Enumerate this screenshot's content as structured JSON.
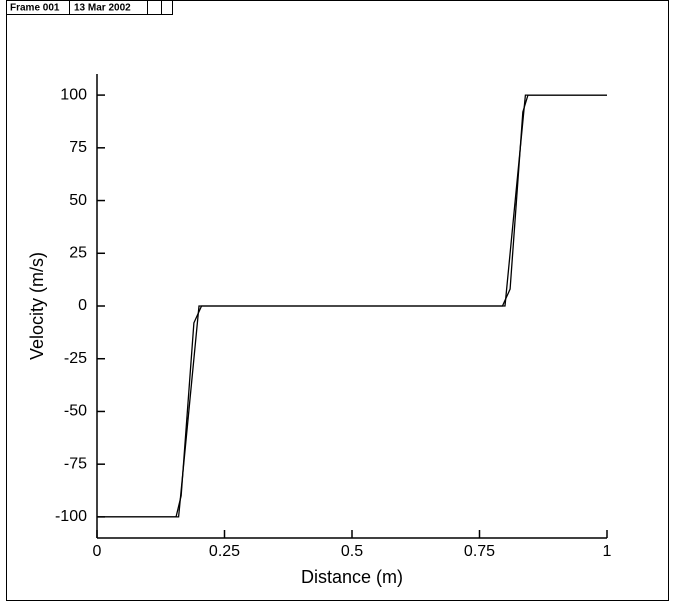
{
  "header": {
    "frame": "Frame 001",
    "date": "13 Mar 2002"
  },
  "chart_data": {
    "type": "line",
    "xlabel": "Distance (m)",
    "ylabel": "Velocity (m/s)",
    "xlim": [
      0,
      1
    ],
    "ylim": [
      -110,
      110
    ],
    "xticks": [
      0,
      0.25,
      0.5,
      0.75,
      1
    ],
    "yticks": [
      -100,
      -75,
      -50,
      -25,
      0,
      25,
      50,
      75,
      100
    ],
    "series": [
      {
        "color": "#000000",
        "x": [
          0,
          0.16,
          0.2,
          0.8,
          0.84,
          1
        ],
        "values": [
          -100,
          -100,
          0,
          0,
          100,
          100
        ]
      },
      {
        "color": "#000000",
        "x": [
          0,
          0.155,
          0.165,
          0.19,
          0.205,
          0.795,
          0.81,
          0.835,
          0.845,
          1
        ],
        "values": [
          -100,
          -100,
          -90,
          -8,
          0,
          0,
          8,
          92,
          100,
          100
        ]
      }
    ]
  }
}
